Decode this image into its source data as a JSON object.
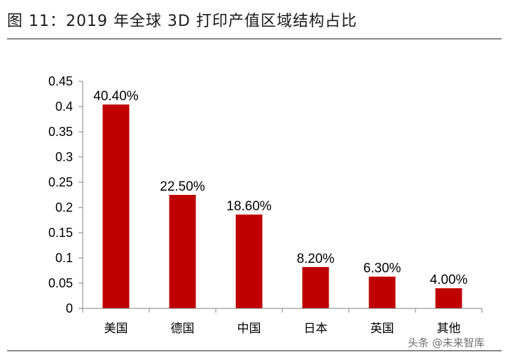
{
  "title": "图 11：2019 年全球 3D 打印产值区域结构占比",
  "watermark": "头条 @未来智库",
  "colors": {
    "bar": "#c00000",
    "axis": "#808080",
    "text": "#000000"
  },
  "chart_data": {
    "type": "bar",
    "title": "图 11：2019 年全球 3D 打印产值区域结构占比",
    "xlabel": "",
    "ylabel": "",
    "categories": [
      "美国",
      "德国",
      "中国",
      "日本",
      "英国",
      "其他"
    ],
    "values": [
      0.404,
      0.225,
      0.186,
      0.082,
      0.063,
      0.04
    ],
    "data_labels": [
      "40.40%",
      "22.50%",
      "18.60%",
      "8.20%",
      "6.30%",
      "4.00%"
    ],
    "ylim": [
      0,
      0.45
    ],
    "yticks": [
      0,
      0.05,
      0.1,
      0.15,
      0.2,
      0.25,
      0.3,
      0.35,
      0.4,
      0.45
    ],
    "ytick_labels": [
      "0",
      "0.05",
      "0.1",
      "0.15",
      "0.2",
      "0.25",
      "0.3",
      "0.35",
      "0.4",
      "0.45"
    ],
    "grid": false,
    "legend": "none"
  }
}
